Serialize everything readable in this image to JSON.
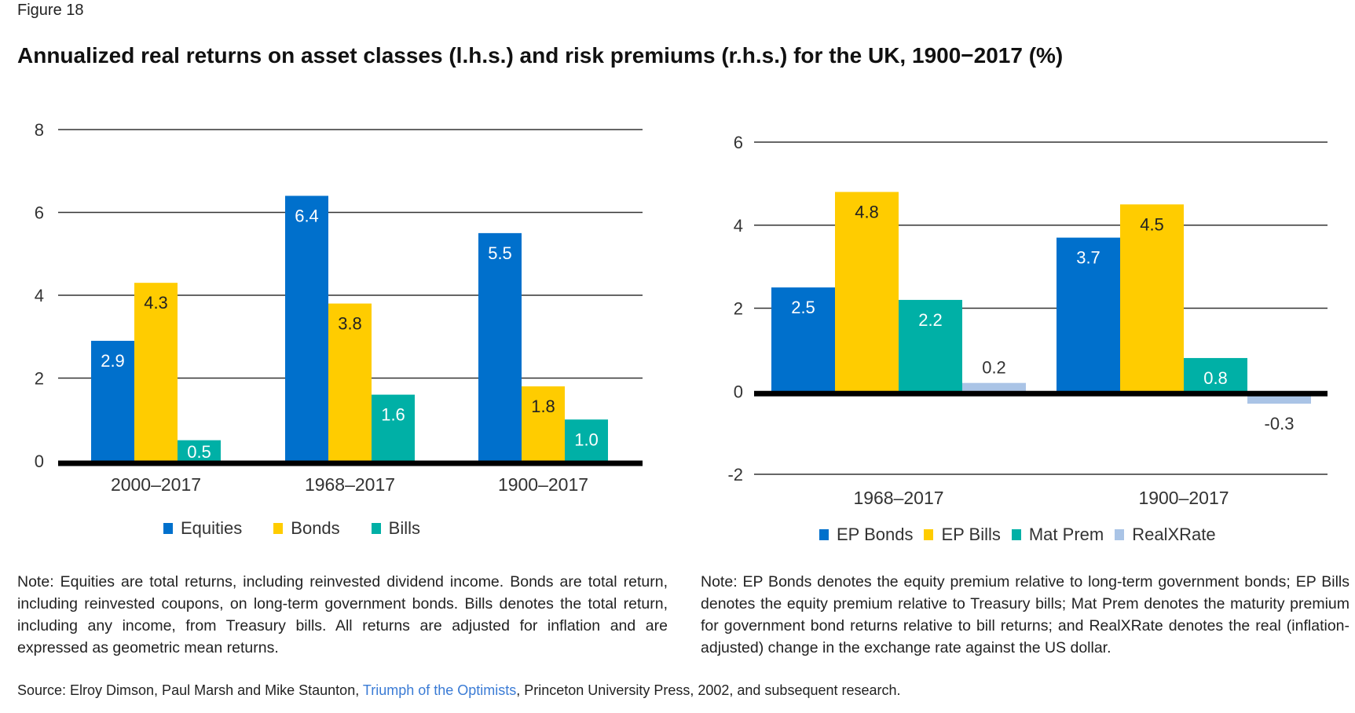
{
  "figure_label": "Figure 18",
  "title": "Annualized real returns on asset classes (l.h.s.) and risk premiums (r.h.s.) for the UK, 1900−2017 (%)",
  "colors": {
    "blue": "#0070cc",
    "yellow": "#ffcc00",
    "teal": "#00b0a6",
    "light_blue": "#aac4e6",
    "grid": "#333333",
    "axis": "#000000"
  },
  "chart_data": [
    {
      "type": "bar",
      "title": "Annualized real returns on asset classes",
      "xlabel": "",
      "ylabel": "",
      "categories": [
        "2000–2017",
        "1968–2017",
        "1900–2017"
      ],
      "ylim": [
        0,
        8
      ],
      "yticks": [
        0,
        2,
        4,
        6,
        8
      ],
      "grid": true,
      "legend_position": "bottom",
      "series": [
        {
          "name": "Equities",
          "color_key": "blue",
          "label_color": "#ffffff",
          "values": [
            2.9,
            6.4,
            5.5
          ],
          "labels": [
            "2.9",
            "6.4",
            "5.5"
          ]
        },
        {
          "name": "Bonds",
          "color_key": "yellow",
          "label_color": "#222222",
          "values": [
            4.3,
            3.8,
            1.8
          ],
          "labels": [
            "4.3",
            "3.8",
            "1.8"
          ]
        },
        {
          "name": "Bills",
          "color_key": "teal",
          "label_color": "#ffffff",
          "values": [
            0.5,
            1.6,
            1.0
          ],
          "labels": [
            "0.5",
            "1.6",
            "1.0"
          ]
        }
      ]
    },
    {
      "type": "bar",
      "title": "Risk premiums",
      "xlabel": "",
      "ylabel": "",
      "categories": [
        "1968–2017",
        "1900–2017"
      ],
      "ylim": [
        -2,
        6
      ],
      "yticks": [
        -2,
        0,
        2,
        4,
        6
      ],
      "grid": true,
      "legend_position": "bottom",
      "series": [
        {
          "name": "EP Bonds",
          "color_key": "blue",
          "label_color": "#ffffff",
          "values": [
            2.5,
            3.7
          ],
          "labels": [
            "2.5",
            "3.7"
          ]
        },
        {
          "name": "EP Bills",
          "color_key": "yellow",
          "label_color": "#222222",
          "values": [
            4.8,
            4.5
          ],
          "labels": [
            "4.8",
            "4.5"
          ]
        },
        {
          "name": "Mat Prem",
          "color_key": "teal",
          "label_color": "#ffffff",
          "values": [
            2.2,
            0.8
          ],
          "labels": [
            "2.2",
            "0.8"
          ]
        },
        {
          "name": "RealXRate",
          "color_key": "light_blue",
          "label_color": "#333333",
          "values": [
            0.2,
            -0.3
          ],
          "labels": [
            "0.2",
            "-0.3"
          ]
        }
      ]
    }
  ],
  "notes": {
    "left": "Note: Equities are total returns, including reinvested dividend income. Bonds are total return, including reinvested coupons, on long-term government bonds. Bills denotes the total return, including any income, from Treasury bills. All returns are adjusted for inflation and are expressed as geometric mean returns.",
    "right": "Note: EP Bonds denotes the equity premium relative to long-term government bonds; EP Bills denotes the equity premium relative to Treasury bills; Mat Prem denotes the maturity premium for government bond returns relative to bill returns; and RealXRate denotes the real (inflation-adjusted) change in the exchange rate against the US dollar."
  },
  "source": {
    "prefix": "Source: Elroy Dimson, Paul Marsh and Mike Staunton, ",
    "link_text": "Triumph of the Optimists",
    "suffix": ", Princeton University Press, 2002, and subsequent research."
  }
}
